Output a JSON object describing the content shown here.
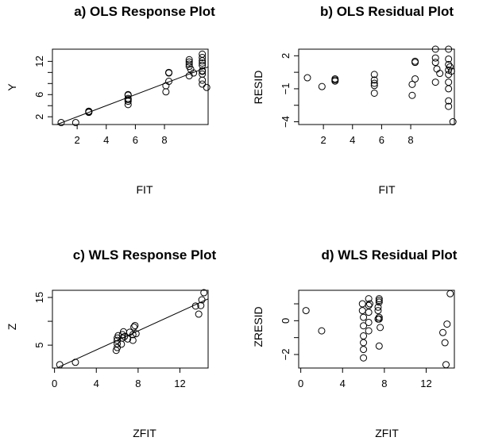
{
  "chart_data": [
    {
      "id": "a",
      "type": "scatter",
      "title": "a) OLS Response Plot",
      "xlabel": "FIT",
      "ylabel": "Y",
      "xlim": [
        0.3,
        11.0
      ],
      "ylim": [
        0.6,
        14.2
      ],
      "xticks": [
        2,
        4,
        6,
        8
      ],
      "yticks": [
        2,
        6,
        12
      ],
      "ytick_labels": [
        "2",
        "6",
        "12"
      ],
      "extra_ytick_marks": [
        4,
        8,
        10
      ],
      "fit_line": {
        "slope": 1,
        "intercept": 0,
        "x_range": [
          0.3,
          11.0
        ]
      },
      "points": [
        [
          0.9,
          0.95
        ],
        [
          1.9,
          0.95
        ],
        [
          2.8,
          2.8
        ],
        [
          2.8,
          2.9
        ],
        [
          2.8,
          3.0
        ],
        [
          5.5,
          4.2
        ],
        [
          5.5,
          4.8
        ],
        [
          5.5,
          5.1
        ],
        [
          5.5,
          5.3
        ],
        [
          5.5,
          5.9
        ],
        [
          5.5,
          6.0
        ],
        [
          8.1,
          6.5
        ],
        [
          8.1,
          7.6
        ],
        [
          8.3,
          8.4
        ],
        [
          8.3,
          9.9
        ],
        [
          8.3,
          10.0
        ],
        [
          9.7,
          9.4
        ],
        [
          9.7,
          11.1
        ],
        [
          9.7,
          11.5
        ],
        [
          9.7,
          11.9
        ],
        [
          9.7,
          12.3
        ],
        [
          9.8,
          10.6
        ],
        [
          10.0,
          9.9
        ],
        [
          10.6,
          7.9
        ],
        [
          10.6,
          8.6
        ],
        [
          10.6,
          9.7
        ],
        [
          10.6,
          10.2
        ],
        [
          10.6,
          10.3
        ],
        [
          10.6,
          11.3
        ],
        [
          10.6,
          11.7
        ],
        [
          10.6,
          12.1
        ],
        [
          10.6,
          12.7
        ],
        [
          10.6,
          13.3
        ],
        [
          10.9,
          7.3
        ]
      ]
    },
    {
      "id": "b",
      "type": "scatter",
      "title": "b) OLS Residual Plot",
      "xlabel": "FIT",
      "ylabel": "RESID",
      "xlim": [
        0.3,
        11.0
      ],
      "ylim": [
        -4.25,
        2.6
      ],
      "xticks": [
        2,
        4,
        6,
        8
      ],
      "yticks": [
        2,
        -1,
        -4
      ],
      "ytick_labels": [
        "2",
        "−1",
        "−4"
      ],
      "extra_ytick_marks": [
        0.5,
        -2.5
      ],
      "points": [
        [
          0.9,
          0.0
        ],
        [
          1.9,
          -0.8
        ],
        [
          2.8,
          -0.3
        ],
        [
          2.8,
          -0.2
        ],
        [
          2.8,
          -0.1
        ],
        [
          5.5,
          -1.4
        ],
        [
          5.5,
          -0.7
        ],
        [
          5.5,
          -0.5
        ],
        [
          5.5,
          -0.2
        ],
        [
          5.5,
          0.3
        ],
        [
          8.1,
          -1.6
        ],
        [
          8.1,
          -0.6
        ],
        [
          8.3,
          -0.1
        ],
        [
          8.3,
          1.4
        ],
        [
          8.3,
          1.5
        ],
        [
          9.7,
          -0.4
        ],
        [
          9.7,
          1.4
        ],
        [
          9.7,
          1.8
        ],
        [
          9.7,
          2.6
        ],
        [
          9.8,
          0.8
        ],
        [
          10.0,
          0.4
        ],
        [
          10.6,
          -2.6
        ],
        [
          10.6,
          -2.1
        ],
        [
          10.6,
          -1.0
        ],
        [
          10.6,
          -0.4
        ],
        [
          10.6,
          0.3
        ],
        [
          10.6,
          0.7
        ],
        [
          10.6,
          1.2
        ],
        [
          10.6,
          1.7
        ],
        [
          10.6,
          2.6
        ],
        [
          10.7,
          1.0
        ],
        [
          10.8,
          0.6
        ],
        [
          10.9,
          -4.0
        ]
      ]
    },
    {
      "id": "c",
      "type": "scatter",
      "title": "c) WLS Response Plot",
      "xlabel": "ZFIT",
      "ylabel": "Z",
      "xlim": [
        -0.2,
        14.7
      ],
      "ylim": [
        0.2,
        16.5
      ],
      "xticks": [
        0,
        4,
        8,
        12
      ],
      "yticks": [
        5,
        15
      ],
      "ytick_labels": [
        "5",
        "15"
      ],
      "extra_ytick_marks": [
        10
      ],
      "fit_line": {
        "slope": 1,
        "intercept": 0,
        "x_range": [
          0.4,
          14.7
        ]
      },
      "points": [
        [
          0.5,
          0.9
        ],
        [
          2.0,
          1.4
        ],
        [
          5.9,
          3.9
        ],
        [
          6.0,
          4.5
        ],
        [
          6.0,
          5.3
        ],
        [
          6.0,
          6.0
        ],
        [
          6.0,
          6.5
        ],
        [
          6.1,
          7.0
        ],
        [
          6.4,
          5.2
        ],
        [
          6.5,
          6.5
        ],
        [
          6.5,
          7.2
        ],
        [
          6.6,
          7.8
        ],
        [
          6.7,
          6.8
        ],
        [
          7.0,
          6.3
        ],
        [
          7.2,
          7.7
        ],
        [
          7.5,
          6.0
        ],
        [
          7.5,
          7.2
        ],
        [
          7.6,
          8.8
        ],
        [
          7.7,
          9.1
        ],
        [
          7.8,
          7.4
        ],
        [
          13.5,
          13.2
        ],
        [
          13.8,
          11.5
        ],
        [
          14.0,
          13.3
        ],
        [
          14.1,
          14.5
        ],
        [
          14.3,
          16.0
        ]
      ]
    },
    {
      "id": "d",
      "type": "scatter",
      "title": "d) WLS Residual Plot",
      "xlabel": "ZFIT",
      "ylabel": "ZRESID",
      "xlim": [
        -0.2,
        14.7
      ],
      "ylim": [
        -2.8,
        1.8
      ],
      "xticks": [
        0,
        4,
        8,
        12
      ],
      "yticks": [
        0,
        -2
      ],
      "ytick_labels": [
        "0",
        "−2"
      ],
      "extra_ytick_marks": [
        1,
        -1
      ],
      "points": [
        [
          0.5,
          0.6
        ],
        [
          2.0,
          -0.6
        ],
        [
          5.9,
          1.0
        ],
        [
          5.9,
          0.6
        ],
        [
          6.0,
          0.2
        ],
        [
          6.0,
          -0.3
        ],
        [
          6.0,
          -0.9
        ],
        [
          6.0,
          -1.3
        ],
        [
          6.0,
          -1.7
        ],
        [
          6.0,
          -2.2
        ],
        [
          6.5,
          1.3
        ],
        [
          6.5,
          0.9
        ],
        [
          6.5,
          0.5
        ],
        [
          6.5,
          -0.1
        ],
        [
          6.5,
          -0.6
        ],
        [
          6.6,
          1.0
        ],
        [
          7.4,
          0.6
        ],
        [
          7.4,
          0.8
        ],
        [
          7.5,
          1.1
        ],
        [
          7.5,
          1.2
        ],
        [
          7.5,
          1.3
        ],
        [
          7.4,
          0.1
        ],
        [
          7.5,
          0.1
        ],
        [
          7.5,
          0.2
        ],
        [
          7.6,
          -0.4
        ],
        [
          7.5,
          -1.5
        ],
        [
          13.6,
          -0.7
        ],
        [
          13.8,
          -1.3
        ],
        [
          14.0,
          -0.2
        ],
        [
          13.9,
          -2.6
        ],
        [
          14.3,
          1.6
        ]
      ]
    }
  ]
}
